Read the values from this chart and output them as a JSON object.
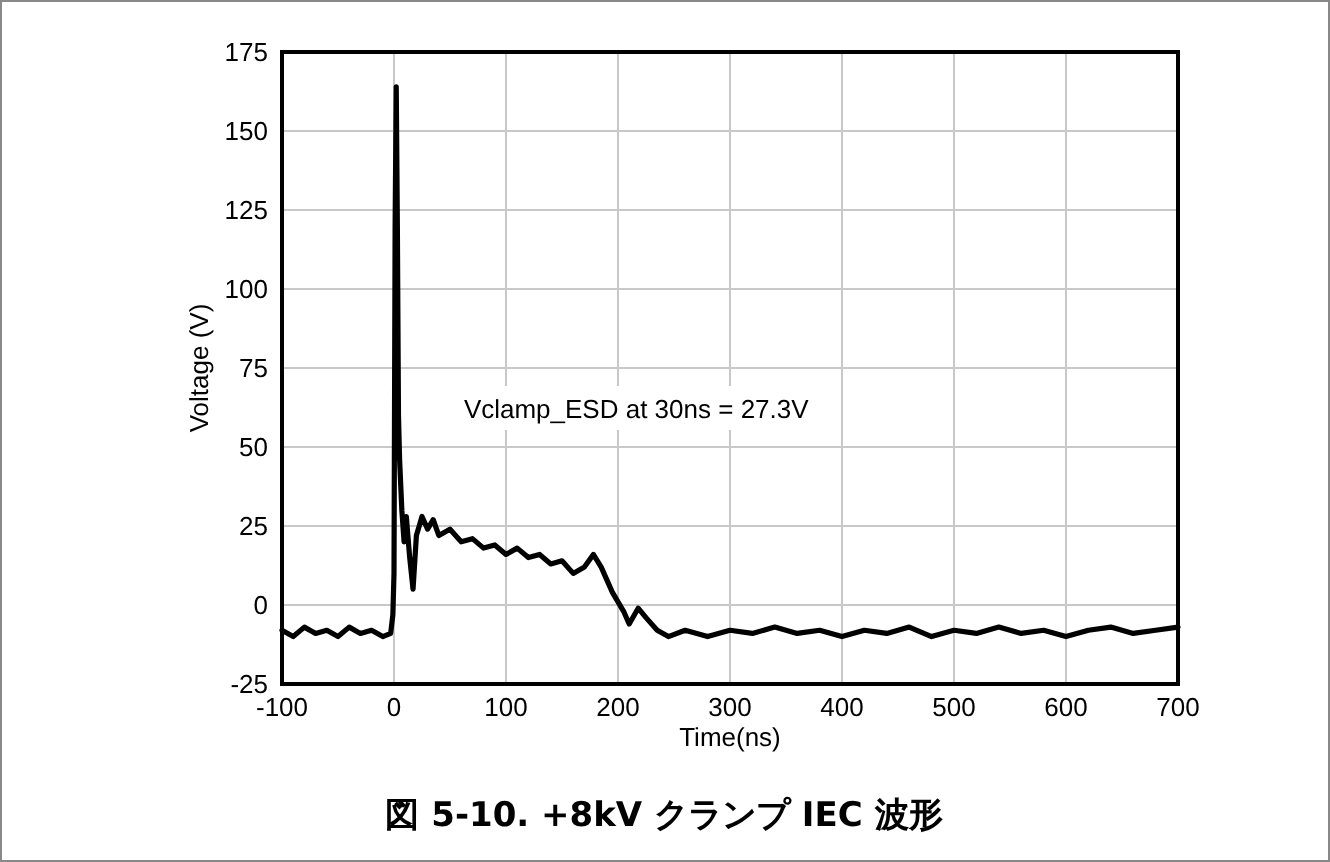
{
  "chart_data": {
    "type": "line",
    "title": "図 5-10. +8kV クランプ IEC 波形",
    "xlabel": "Time(ns)",
    "ylabel": "Voltage (V)",
    "annotations": [
      "Vclamp_ESD at 30ns = 27.3V"
    ],
    "series": [
      {
        "color": "#000000",
        "x": [
          -100,
          -90,
          -80,
          -70,
          -60,
          -50,
          -40,
          -30,
          -20,
          -10,
          -3,
          -1,
          0,
          1,
          2,
          3,
          4,
          5,
          7,
          9,
          11,
          14,
          17,
          20,
          25,
          30,
          35,
          40,
          50,
          60,
          70,
          80,
          90,
          100,
          110,
          120,
          130,
          140,
          150,
          160,
          170,
          178,
          185,
          195,
          205,
          210,
          218,
          225,
          235,
          245,
          260,
          280,
          300,
          320,
          340,
          360,
          380,
          400,
          420,
          440,
          460,
          480,
          500,
          520,
          540,
          560,
          580,
          600,
          620,
          640,
          660,
          680,
          700
        ],
        "values": [
          -8,
          -10,
          -7,
          -9,
          -8,
          -10,
          -7,
          -9,
          -8,
          -10,
          -9,
          -3,
          10,
          120,
          164,
          120,
          60,
          46,
          30,
          20,
          28,
          15,
          5,
          22,
          28,
          24,
          27,
          22,
          24,
          20,
          21,
          18,
          19,
          16,
          18,
          15,
          16,
          13,
          14,
          10,
          12,
          16,
          12,
          4,
          -2,
          -6,
          -1,
          -4,
          -8,
          -10,
          -8,
          -10,
          -8,
          -9,
          -7,
          -9,
          -8,
          -10,
          -8,
          -9,
          -7,
          -10,
          -8,
          -9,
          -7,
          -9,
          -8,
          -10,
          -8,
          -7,
          -9,
          -8,
          -7
        ]
      }
    ],
    "xlim": [
      -100,
      700
    ],
    "xticks": [
      -100,
      0,
      100,
      200,
      300,
      400,
      500,
      600,
      700
    ],
    "ylim": [
      -25,
      175
    ],
    "yticks": [
      -25,
      0,
      25,
      50,
      75,
      100,
      125,
      150,
      175
    ],
    "grid": true,
    "marker": "none",
    "line_style": "solid"
  }
}
